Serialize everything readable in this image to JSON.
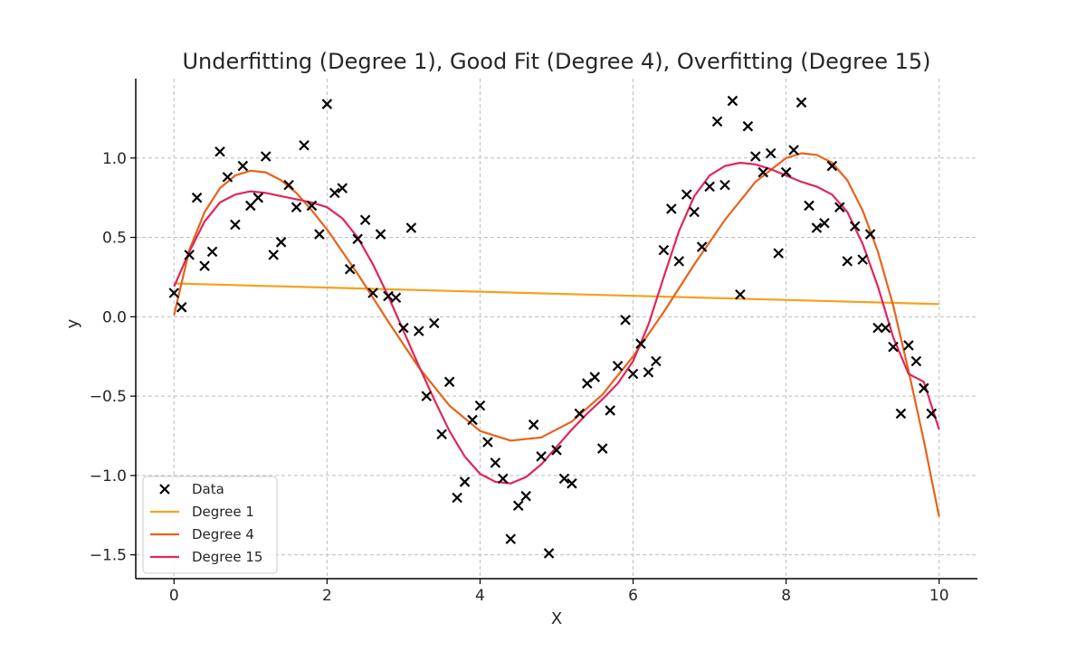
{
  "chart_data": {
    "type": "scatter",
    "title": "Underfitting (Degree 1), Good Fit (Degree 4), Overfitting (Degree 15)",
    "xlabel": "X",
    "ylabel": "y",
    "xlim": [
      -0.5,
      10.5
    ],
    "ylim": [
      -1.65,
      1.5
    ],
    "xticks": [
      0,
      2,
      4,
      6,
      8,
      10
    ],
    "xtick_labels": [
      "0",
      "2",
      "4",
      "6",
      "8",
      "10"
    ],
    "yticks": [
      -1.5,
      -1.0,
      -0.5,
      0.0,
      0.5,
      1.0
    ],
    "ytick_labels": [
      "−1.5",
      "−1.0",
      "−0.5",
      "0.0",
      "0.5",
      "1.0"
    ],
    "grid": true,
    "legend_position": "lower-left",
    "colors": {
      "data": "#000000",
      "degree1": "#f5a21b",
      "degree4": "#e9621a",
      "degree15": "#e0265a"
    },
    "scatter": {
      "name": "Data",
      "points": [
        [
          0.0,
          0.15
        ],
        [
          0.1,
          0.06
        ],
        [
          0.2,
          0.39
        ],
        [
          0.3,
          0.75
        ],
        [
          0.4,
          0.32
        ],
        [
          0.5,
          0.41
        ],
        [
          0.6,
          1.04
        ],
        [
          0.7,
          0.88
        ],
        [
          0.8,
          0.58
        ],
        [
          0.9,
          0.95
        ],
        [
          1.0,
          0.7
        ],
        [
          1.1,
          0.75
        ],
        [
          1.2,
          1.01
        ],
        [
          1.3,
          0.39
        ],
        [
          1.4,
          0.47
        ],
        [
          1.5,
          0.83
        ],
        [
          1.6,
          0.69
        ],
        [
          1.7,
          1.08
        ],
        [
          1.8,
          0.7
        ],
        [
          1.9,
          0.52
        ],
        [
          2.0,
          1.34
        ],
        [
          2.1,
          0.78
        ],
        [
          2.2,
          0.81
        ],
        [
          2.3,
          0.3
        ],
        [
          2.4,
          0.49
        ],
        [
          2.5,
          0.61
        ],
        [
          2.6,
          0.15
        ],
        [
          2.7,
          0.52
        ],
        [
          2.8,
          0.13
        ],
        [
          2.9,
          0.12
        ],
        [
          3.0,
          -0.07
        ],
        [
          3.1,
          0.56
        ],
        [
          3.2,
          -0.09
        ],
        [
          3.3,
          -0.5
        ],
        [
          3.4,
          -0.04
        ],
        [
          3.5,
          -0.74
        ],
        [
          3.6,
          -0.41
        ],
        [
          3.7,
          -1.14
        ],
        [
          3.8,
          -1.04
        ],
        [
          3.9,
          -0.65
        ],
        [
          4.0,
          -0.56
        ],
        [
          4.1,
          -0.79
        ],
        [
          4.2,
          -0.92
        ],
        [
          4.3,
          -1.02
        ],
        [
          4.4,
          -1.4
        ],
        [
          4.5,
          -1.19
        ],
        [
          4.6,
          -1.13
        ],
        [
          4.7,
          -0.68
        ],
        [
          4.8,
          -0.88
        ],
        [
          4.9,
          -1.49
        ],
        [
          5.0,
          -0.84
        ],
        [
          5.1,
          -1.02
        ],
        [
          5.2,
          -1.05
        ],
        [
          5.3,
          -0.61
        ],
        [
          5.4,
          -0.42
        ],
        [
          5.5,
          -0.38
        ],
        [
          5.6,
          -0.83
        ],
        [
          5.7,
          -0.59
        ],
        [
          5.8,
          -0.31
        ],
        [
          5.9,
          -0.02
        ],
        [
          6.0,
          -0.36
        ],
        [
          6.1,
          -0.17
        ],
        [
          6.2,
          -0.35
        ],
        [
          6.3,
          -0.28
        ],
        [
          6.4,
          0.42
        ],
        [
          6.5,
          0.68
        ],
        [
          6.6,
          0.35
        ],
        [
          6.7,
          0.77
        ],
        [
          6.8,
          0.66
        ],
        [
          6.9,
          0.44
        ],
        [
          7.0,
          0.82
        ],
        [
          7.1,
          1.23
        ],
        [
          7.2,
          0.83
        ],
        [
          7.3,
          1.36
        ],
        [
          7.4,
          0.14
        ],
        [
          7.5,
          1.2
        ],
        [
          7.6,
          1.01
        ],
        [
          7.7,
          0.91
        ],
        [
          7.8,
          1.03
        ],
        [
          7.9,
          0.4
        ],
        [
          8.0,
          0.91
        ],
        [
          8.1,
          1.05
        ],
        [
          8.2,
          1.35
        ],
        [
          8.3,
          0.7
        ],
        [
          8.4,
          0.56
        ],
        [
          8.5,
          0.59
        ],
        [
          8.6,
          0.95
        ],
        [
          8.7,
          0.69
        ],
        [
          8.8,
          0.35
        ],
        [
          8.9,
          0.57
        ],
        [
          9.0,
          0.36
        ],
        [
          9.1,
          0.52
        ],
        [
          9.2,
          -0.07
        ],
        [
          9.3,
          -0.07
        ],
        [
          9.4,
          -0.19
        ],
        [
          9.5,
          -0.61
        ],
        [
          9.6,
          -0.18
        ],
        [
          9.7,
          -0.28
        ],
        [
          9.8,
          -0.45
        ],
        [
          9.9,
          -0.61
        ]
      ]
    },
    "series": [
      {
        "name": "Degree 1",
        "x": [
          0,
          10
        ],
        "y": [
          0.21,
          0.08
        ]
      },
      {
        "name": "Degree 4",
        "x": [
          0.0,
          0.2,
          0.4,
          0.6,
          0.8,
          1.0,
          1.2,
          1.4,
          1.6,
          1.8,
          2.0,
          2.4,
          2.8,
          3.2,
          3.6,
          4.0,
          4.4,
          4.8,
          5.2,
          5.6,
          6.0,
          6.4,
          6.8,
          7.2,
          7.6,
          8.0,
          8.2,
          8.4,
          8.6,
          8.8,
          9.0,
          9.2,
          9.4,
          9.6,
          9.8,
          10.0
        ],
        "y": [
          0.01,
          0.42,
          0.66,
          0.81,
          0.89,
          0.92,
          0.91,
          0.86,
          0.78,
          0.67,
          0.55,
          0.27,
          -0.03,
          -0.32,
          -0.56,
          -0.72,
          -0.78,
          -0.76,
          -0.66,
          -0.49,
          -0.25,
          0.03,
          0.33,
          0.61,
          0.85,
          1.0,
          1.03,
          1.02,
          0.97,
          0.86,
          0.67,
          0.41,
          0.07,
          -0.34,
          -0.78,
          -1.26
        ]
      },
      {
        "name": "Degree 15",
        "x": [
          0.0,
          0.2,
          0.4,
          0.6,
          0.8,
          1.0,
          1.2,
          1.4,
          1.6,
          1.8,
          2.0,
          2.2,
          2.4,
          2.6,
          2.8,
          3.0,
          3.2,
          3.4,
          3.6,
          3.8,
          4.0,
          4.2,
          4.4,
          4.6,
          4.8,
          5.0,
          5.2,
          5.4,
          5.6,
          5.8,
          6.0,
          6.2,
          6.4,
          6.6,
          6.8,
          7.0,
          7.2,
          7.4,
          7.6,
          7.8,
          8.0,
          8.2,
          8.4,
          8.6,
          8.8,
          9.0,
          9.2,
          9.4,
          9.6,
          9.8,
          10.0
        ],
        "y": [
          0.19,
          0.41,
          0.6,
          0.72,
          0.77,
          0.79,
          0.78,
          0.76,
          0.74,
          0.72,
          0.69,
          0.62,
          0.5,
          0.33,
          0.13,
          -0.09,
          -0.31,
          -0.52,
          -0.72,
          -0.88,
          -0.99,
          -1.04,
          -1.05,
          -1.01,
          -0.93,
          -0.82,
          -0.71,
          -0.61,
          -0.52,
          -0.42,
          -0.28,
          -0.05,
          0.25,
          0.54,
          0.76,
          0.89,
          0.95,
          0.97,
          0.96,
          0.93,
          0.89,
          0.85,
          0.82,
          0.77,
          0.66,
          0.46,
          0.19,
          -0.13,
          -0.36,
          -0.41,
          -0.71
        ]
      }
    ]
  }
}
